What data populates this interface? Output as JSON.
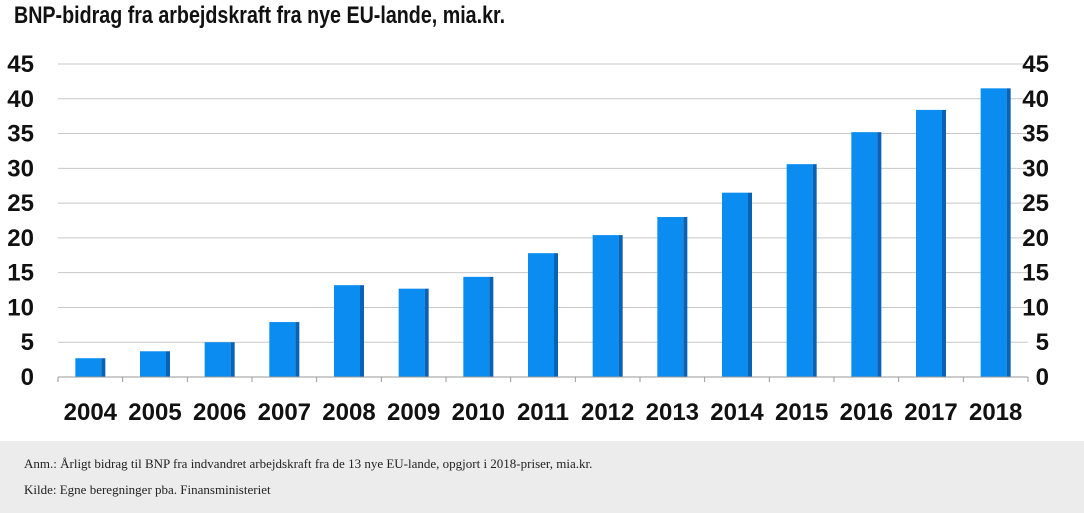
{
  "title": "BNP-bidrag fra arbejdskraft fra nye EU-lande, mia.kr.",
  "footer": {
    "note": "Anm.: Årligt bidrag til BNP fra indvandret arbejdskraft fra de 13 nye EU-lande, opgjort i 2018-priser, mia.kr.",
    "source": "Kilde: Egne beregninger pba. Finansministeriet"
  },
  "colors": {
    "bar": "#0a8cf0",
    "bar_shade": "#0a62b4",
    "grid": "#c8c8c8"
  },
  "chart_data": {
    "type": "bar",
    "title": "BNP-bidrag fra arbejdskraft fra nye EU-lande, mia.kr.",
    "xlabel": "",
    "ylabel": "",
    "categories": [
      "2004",
      "2005",
      "2006",
      "2007",
      "2008",
      "2009",
      "2010",
      "2011",
      "2012",
      "2013",
      "2014",
      "2015",
      "2016",
      "2017",
      "2018"
    ],
    "values": [
      2.7,
      3.7,
      5.0,
      7.9,
      13.2,
      12.7,
      14.4,
      17.8,
      20.4,
      23.0,
      26.5,
      30.6,
      35.2,
      38.4,
      41.5
    ],
    "ylim": [
      0,
      45
    ],
    "yticks": [
      0,
      5,
      10,
      15,
      20,
      25,
      30,
      35,
      40,
      45
    ],
    "secondary_y_axis": true,
    "grid": true,
    "legend": "none"
  }
}
